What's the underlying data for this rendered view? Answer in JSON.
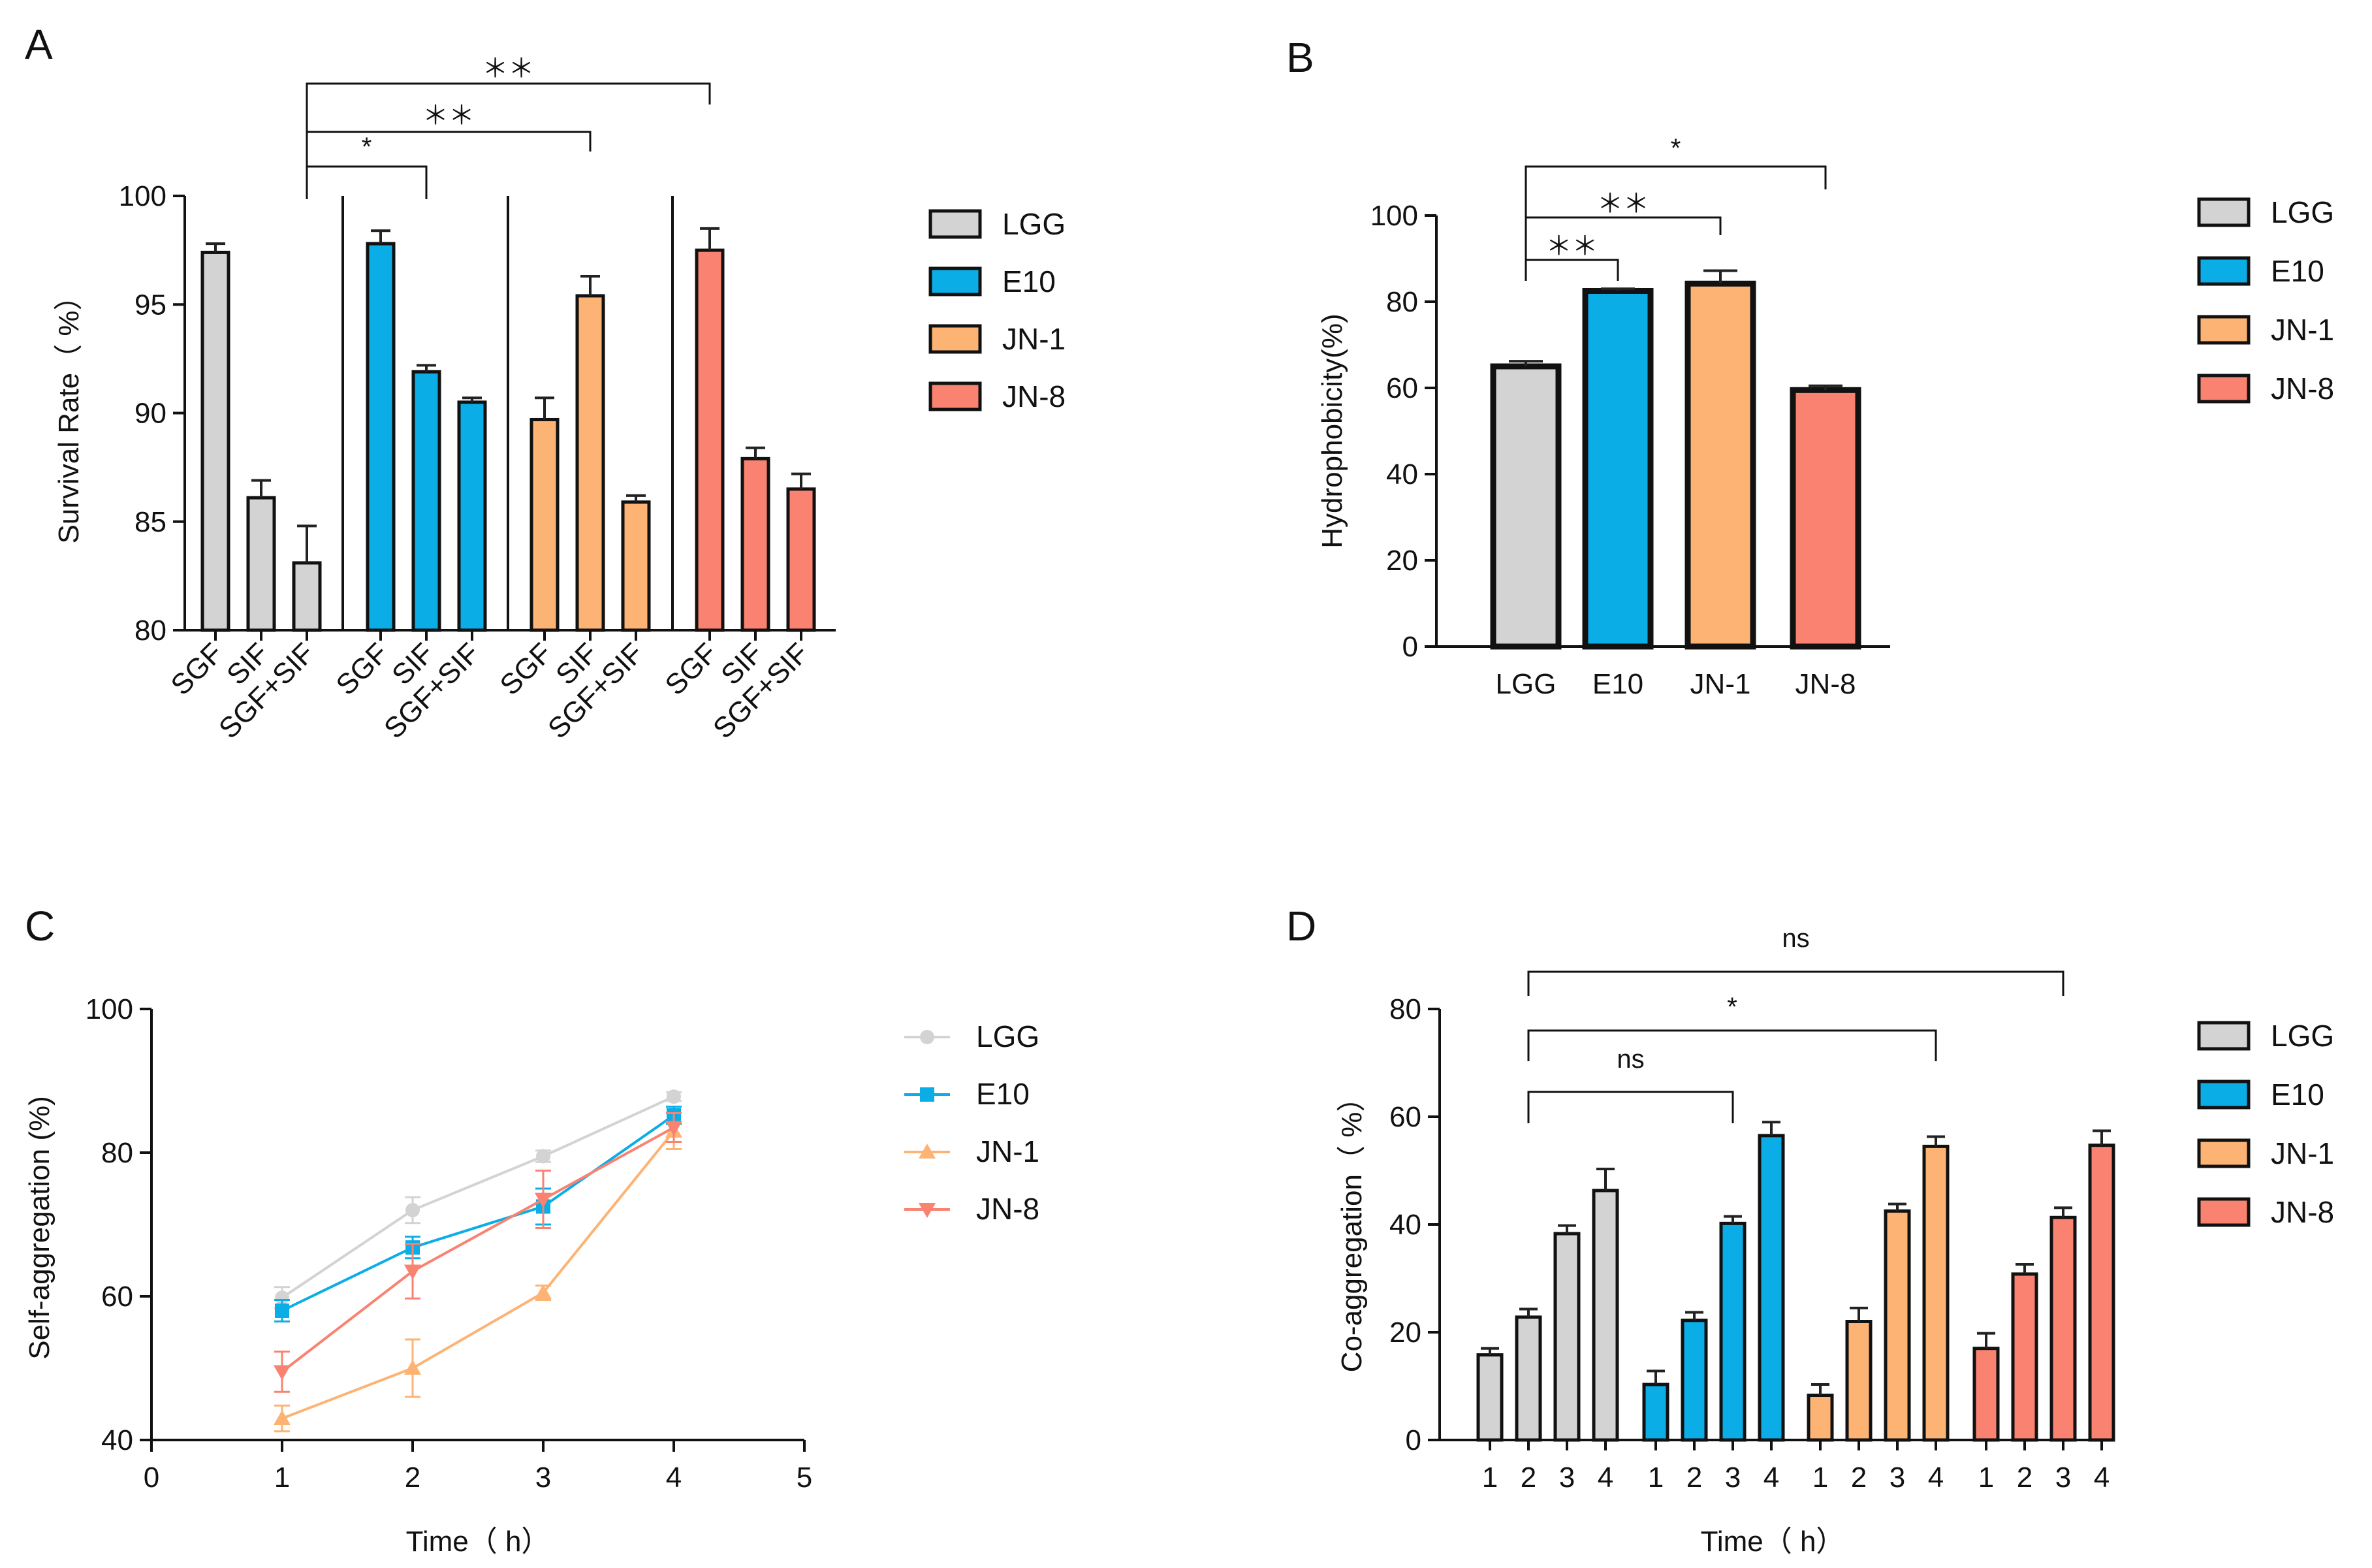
{
  "colors": {
    "LGG": "#d3d3d3",
    "E10": "#0aade6",
    "JN-1": "#fcb373",
    "JN-8": "#f98271"
  },
  "chart_data": [
    {
      "panel": "A",
      "type": "bar",
      "title": "",
      "xlabel": "",
      "ylabel": "Survival Rate（ %）",
      "ylim": [
        80,
        100
      ],
      "yticks": [
        "80",
        "85",
        "90",
        "95",
        "100"
      ],
      "groups": [
        "LGG",
        "E10",
        "JN-1",
        "JN-8"
      ],
      "categories": [
        "SGF",
        "SIF",
        "SGF+SIF"
      ],
      "series": [
        {
          "name": "LGG",
          "values": [
            97.4,
            86.1,
            83.1
          ],
          "errors": [
            0.4,
            0.8,
            1.7
          ]
        },
        {
          "name": "E10",
          "values": [
            97.8,
            91.9,
            90.5
          ],
          "errors": [
            0.6,
            0.3,
            0.2
          ]
        },
        {
          "name": "JN-1",
          "values": [
            89.7,
            95.4,
            85.9
          ],
          "errors": [
            1.0,
            0.9,
            0.3
          ]
        },
        {
          "name": "JN-8",
          "values": [
            97.5,
            87.9,
            86.5
          ],
          "errors": [
            1.0,
            0.5,
            0.7
          ]
        }
      ],
      "legend": [
        "LGG",
        "E10",
        "JN-1",
        "JN-8"
      ],
      "legend_position": "right",
      "annotations": [
        {
          "from": "LGG SGF+SIF",
          "to": "E10 SIF",
          "text": "*"
        },
        {
          "from": "LGG SGF+SIF",
          "to": "JN-1 SIF",
          "text": "＊＊"
        },
        {
          "from": "LGG SGF+SIF",
          "to": "JN-8 SGF",
          "text": "＊＊"
        }
      ]
    },
    {
      "panel": "B",
      "type": "bar",
      "title": "",
      "xlabel": "",
      "ylabel": "Hydrophobicity(%)",
      "ylim": [
        0,
        100
      ],
      "yticks": [
        "0",
        "20",
        "40",
        "60",
        "80",
        "100"
      ],
      "categories": [
        "LGG",
        "E10",
        "JN-1",
        "JN-8"
      ],
      "values": [
        65.0,
        82.5,
        84.2,
        59.5
      ],
      "errors": [
        1.2,
        0.5,
        3.0,
        1.0
      ],
      "legend": [
        "LGG",
        "E10",
        "JN-1",
        "JN-8"
      ],
      "legend_position": "right",
      "annotations": [
        {
          "from": "LGG",
          "to": "E10",
          "text": "＊＊"
        },
        {
          "from": "LGG",
          "to": "JN-1",
          "text": "＊＊"
        },
        {
          "from": "LGG",
          "to": "JN-8",
          "text": "*"
        }
      ]
    },
    {
      "panel": "C",
      "type": "line",
      "title": "",
      "xlabel": "Time（ h）",
      "ylabel": "Self-aggregation (%)",
      "xlim": [
        0,
        5
      ],
      "ylim": [
        40,
        100
      ],
      "xticks": [
        "0",
        "1",
        "2",
        "3",
        "4",
        "5"
      ],
      "yticks": [
        "40",
        "60",
        "80",
        "100"
      ],
      "x": [
        1,
        2,
        3,
        4
      ],
      "series": [
        {
          "name": "LGG",
          "marker": "circle",
          "values": [
            59.8,
            72.0,
            79.5,
            87.8
          ],
          "errors": [
            1.5,
            1.8,
            0.8,
            0.6
          ]
        },
        {
          "name": "E10",
          "marker": "square",
          "values": [
            58.0,
            66.8,
            72.5,
            85.2
          ],
          "errors": [
            1.5,
            1.5,
            2.5,
            1.2
          ]
        },
        {
          "name": "JN-1",
          "marker": "triangle-up",
          "values": [
            43.0,
            50.0,
            60.5,
            83.0
          ],
          "errors": [
            1.8,
            4.0,
            1.0,
            2.5
          ]
        },
        {
          "name": "JN-8",
          "marker": "triangle-down",
          "values": [
            49.5,
            63.5,
            73.5,
            83.5
          ],
          "errors": [
            2.8,
            3.8,
            4.0,
            2.0
          ]
        }
      ],
      "legend": [
        "LGG",
        "E10",
        "JN-1",
        "JN-8"
      ],
      "legend_position": "right"
    },
    {
      "panel": "D",
      "type": "bar",
      "title": "",
      "xlabel": "Time（ h）",
      "ylabel": "Co-aggregation（ %）",
      "ylim": [
        0,
        80
      ],
      "yticks": [
        "0",
        "20",
        "40",
        "60",
        "80"
      ],
      "groups": [
        "LGG",
        "E10",
        "JN-1",
        "JN-8"
      ],
      "categories": [
        "1",
        "2",
        "3",
        "4"
      ],
      "series": [
        {
          "name": "LGG",
          "values": [
            15.8,
            22.8,
            38.3,
            46.3
          ],
          "errors": [
            1.2,
            1.5,
            1.5,
            4.0
          ]
        },
        {
          "name": "E10",
          "values": [
            10.3,
            22.2,
            40.2,
            56.5
          ],
          "errors": [
            2.5,
            1.5,
            1.3,
            2.5
          ]
        },
        {
          "name": "JN-1",
          "values": [
            8.3,
            22.0,
            42.5,
            54.5
          ],
          "errors": [
            2.0,
            2.5,
            1.3,
            1.8
          ]
        },
        {
          "name": "JN-8",
          "values": [
            17.0,
            30.8,
            41.3,
            54.7
          ],
          "errors": [
            2.8,
            1.8,
            1.8,
            2.7
          ]
        }
      ],
      "legend": [
        "LGG",
        "E10",
        "JN-1",
        "JN-8"
      ],
      "legend_position": "right",
      "annotations": [
        {
          "from": "LGG 2",
          "to": "E10 3",
          "text": "ns"
        },
        {
          "from": "LGG 2",
          "to": "JN-1 4",
          "text": "*"
        },
        {
          "from": "LGG 2",
          "to": "JN-8 3",
          "text": "ns"
        }
      ]
    }
  ]
}
